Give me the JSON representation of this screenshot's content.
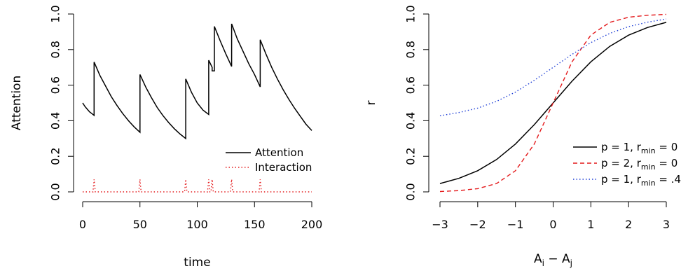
{
  "chart_data": [
    {
      "type": "line",
      "title": "",
      "xlabel": "time",
      "ylabel": "Attention",
      "xlim": [
        0,
        200
      ],
      "ylim": [
        0,
        1
      ],
      "xticks": [
        0,
        50,
        100,
        150,
        200
      ],
      "xtick_labels": [
        "0",
        "50",
        "100",
        "150",
        "200"
      ],
      "yticks": [
        0,
        0.2,
        0.4,
        0.6,
        0.8,
        1.0
      ],
      "ytick_labels": [
        "0.0",
        "0.2",
        "0.4",
        "0.6",
        "0.8",
        "1.0"
      ],
      "legend_position": "bottom-right",
      "series": [
        {
          "name": "Attention",
          "color": "#000000",
          "dash": "solid",
          "x": [
            0,
            2,
            4,
            6,
            8,
            10,
            10,
            15,
            20,
            25,
            30,
            35,
            40,
            45,
            50,
            50,
            55,
            60,
            65,
            70,
            75,
            80,
            85,
            90,
            90,
            95,
            100,
            105,
            110,
            110,
            113,
            113,
            115,
            115,
            120,
            125,
            130,
            130,
            135,
            140,
            145,
            150,
            155,
            155,
            160,
            165,
            170,
            175,
            180,
            185,
            190,
            195,
            200
          ],
          "y": [
            0.5,
            0.48,
            0.465,
            0.45,
            0.44,
            0.43,
            0.73,
            0.655,
            0.595,
            0.535,
            0.485,
            0.44,
            0.4,
            0.365,
            0.335,
            0.66,
            0.59,
            0.53,
            0.475,
            0.43,
            0.39,
            0.355,
            0.325,
            0.3,
            0.635,
            0.56,
            0.5,
            0.46,
            0.435,
            0.74,
            0.7,
            0.68,
            0.68,
            0.93,
            0.85,
            0.775,
            0.705,
            0.945,
            0.86,
            0.79,
            0.72,
            0.66,
            0.59,
            0.855,
            0.775,
            0.7,
            0.635,
            0.575,
            0.52,
            0.47,
            0.425,
            0.38,
            0.345
          ]
        },
        {
          "name": "Interaction",
          "color": "#e41a1c",
          "dash": "dotted",
          "x": [
            0,
            9,
            10,
            11,
            49,
            50,
            51,
            89,
            90,
            91,
            109,
            110,
            111,
            112,
            113,
            114,
            129,
            130,
            131,
            154,
            155,
            156,
            200
          ],
          "y": [
            0,
            0,
            0.07,
            0,
            0,
            0.07,
            0,
            0,
            0.07,
            0,
            0,
            0.07,
            0,
            0,
            0.07,
            0,
            0,
            0.07,
            0,
            0,
            0.07,
            0,
            0
          ]
        }
      ]
    },
    {
      "type": "line",
      "title": "",
      "xlabel": "A_i − A_j",
      "xlabel_parts": [
        "A",
        "i",
        "−",
        "A",
        "j"
      ],
      "ylabel": "r",
      "xlim": [
        -3,
        3
      ],
      "ylim": [
        0,
        1
      ],
      "xticks": [
        -3,
        -2,
        -1,
        0,
        1,
        2,
        3
      ],
      "xtick_labels": [
        "−3",
        "−2",
        "−1",
        "0",
        "1",
        "2",
        "3"
      ],
      "yticks": [
        0,
        0.2,
        0.4,
        0.6,
        0.8,
        1.0
      ],
      "ytick_labels": [
        "0.0",
        "0.2",
        "0.4",
        "0.6",
        "0.8",
        "1.0"
      ],
      "legend_position": "bottom-right",
      "series": [
        {
          "name": "p = 1, r_min = 0",
          "legend_parts": [
            "p = 1, r",
            "min",
            " = 0"
          ],
          "color": "#000000",
          "dash": "solid",
          "x": [
            -3,
            -2.5,
            -2,
            -1.5,
            -1,
            -0.5,
            0,
            0.5,
            1,
            1.5,
            2,
            2.5,
            3
          ],
          "y": [
            0.047,
            0.076,
            0.119,
            0.182,
            0.269,
            0.378,
            0.5,
            0.622,
            0.731,
            0.818,
            0.881,
            0.924,
            0.953
          ]
        },
        {
          "name": "p = 2, r_min = 0",
          "legend_parts": [
            "p = 2, r",
            "min",
            " = 0"
          ],
          "color": "#e41a1c",
          "dash": "dashed",
          "x": [
            -3,
            -2.5,
            -2,
            -1.5,
            -1,
            -0.5,
            0,
            0.5,
            1,
            1.5,
            2,
            2.5,
            3
          ],
          "y": [
            0.002,
            0.007,
            0.018,
            0.047,
            0.119,
            0.269,
            0.5,
            0.731,
            0.881,
            0.953,
            0.982,
            0.993,
            0.998
          ]
        },
        {
          "name": "p = 1, r_min = .4",
          "legend_parts": [
            "p = 1, r",
            "min",
            " = .4"
          ],
          "color": "#1f3fd6",
          "dash": "dotted",
          "x": [
            -3,
            -2.5,
            -2,
            -1.5,
            -1,
            -0.5,
            0,
            0.5,
            1,
            1.5,
            2,
            2.5,
            3
          ],
          "y": [
            0.428,
            0.446,
            0.471,
            0.509,
            0.561,
            0.627,
            0.7,
            0.773,
            0.839,
            0.891,
            0.929,
            0.954,
            0.972
          ]
        }
      ]
    }
  ]
}
